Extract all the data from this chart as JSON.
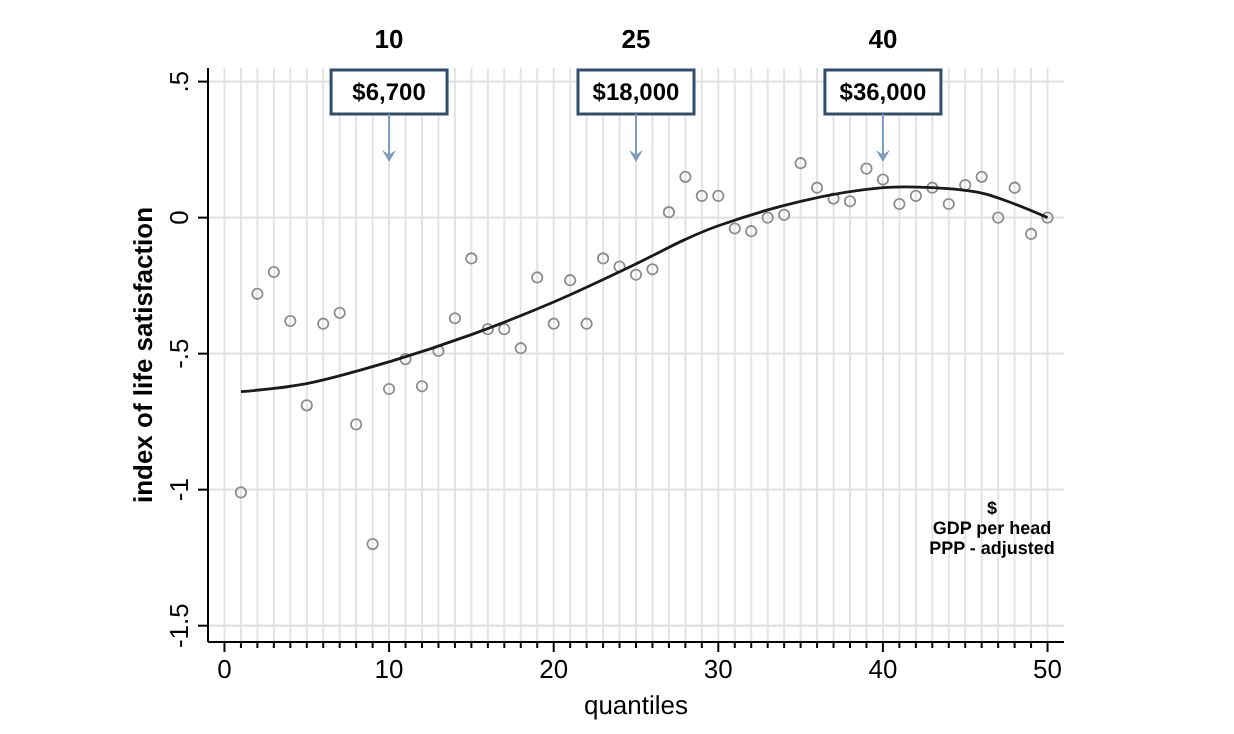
{
  "chart_data": {
    "type": "scatter",
    "xlabel": "quantiles",
    "ylabel": "index of life satisfaction",
    "xlim": [
      -1,
      51
    ],
    "ylim": [
      -1.56,
      0.55
    ],
    "xticks": [
      0,
      {
        "value": 1,
        "label": null
      },
      {
        "value": 2,
        "label": null
      },
      {
        "value": 3,
        "label": null
      },
      {
        "value": 4,
        "label": null
      },
      {
        "value": 5,
        "label": null
      },
      {
        "value": 6,
        "label": null
      },
      {
        "value": 7,
        "label": null
      },
      {
        "value": 8,
        "label": null
      },
      {
        "value": 9,
        "label": null
      },
      10,
      {
        "value": 11,
        "label": null
      },
      {
        "value": 12,
        "label": null
      },
      {
        "value": 13,
        "label": null
      },
      {
        "value": 14,
        "label": null
      },
      {
        "value": 15,
        "label": null
      },
      {
        "value": 16,
        "label": null
      },
      {
        "value": 17,
        "label": null
      },
      {
        "value": 18,
        "label": null
      },
      {
        "value": 19,
        "label": null
      },
      20,
      {
        "value": 21,
        "label": null
      },
      {
        "value": 22,
        "label": null
      },
      {
        "value": 23,
        "label": null
      },
      {
        "value": 24,
        "label": null
      },
      {
        "value": 25,
        "label": null
      },
      {
        "value": 26,
        "label": null
      },
      {
        "value": 27,
        "label": null
      },
      {
        "value": 28,
        "label": null
      },
      {
        "value": 29,
        "label": null
      },
      30,
      {
        "value": 31,
        "label": null
      },
      {
        "value": 32,
        "label": null
      },
      {
        "value": 33,
        "label": null
      },
      {
        "value": 34,
        "label": null
      },
      {
        "value": 35,
        "label": null
      },
      {
        "value": 36,
        "label": null
      },
      {
        "value": 37,
        "label": null
      },
      {
        "value": 38,
        "label": null
      },
      {
        "value": 39,
        "label": null
      },
      40,
      {
        "value": 41,
        "label": null
      },
      {
        "value": 42,
        "label": null
      },
      {
        "value": 43,
        "label": null
      },
      {
        "value": 44,
        "label": null
      },
      {
        "value": 45,
        "label": null
      },
      {
        "value": 46,
        "label": null
      },
      {
        "value": 47,
        "label": null
      },
      {
        "value": 48,
        "label": null
      },
      {
        "value": 49,
        "label": null
      },
      50
    ],
    "yticks": [
      {
        "value": 0.5,
        "label": ".5"
      },
      0,
      {
        "value": -0.5,
        "label": "-.5"
      },
      -1,
      {
        "value": -1.5,
        "label": "-1.5"
      }
    ],
    "x2lim": [
      -1,
      51
    ],
    "x2ticks": [
      10,
      25,
      40
    ],
    "grid": true,
    "marker": "circle",
    "series": [
      {
        "color": "#8c8c8c",
        "x": [
          1,
          2,
          3,
          4,
          5,
          6,
          7,
          8,
          9,
          10,
          11,
          12,
          13,
          14,
          15,
          16,
          17,
          18,
          19,
          20,
          21,
          22,
          23,
          24,
          25,
          26,
          27,
          28,
          29,
          30,
          31,
          32,
          33,
          34,
          35,
          36,
          37,
          38,
          39,
          40,
          41,
          42,
          43,
          44,
          45,
          46,
          47,
          48,
          49,
          50
        ],
        "values": [
          -1.01,
          -0.28,
          -0.2,
          -0.38,
          -0.69,
          -0.39,
          -0.35,
          -0.76,
          -1.2,
          -0.63,
          -0.52,
          -0.62,
          -0.49,
          -0.37,
          -0.15,
          -0.41,
          -0.41,
          -0.48,
          -0.22,
          -0.39,
          -0.23,
          -0.39,
          -0.15,
          -0.18,
          -0.21,
          -0.19,
          0.02,
          0.15,
          0.08,
          0.08,
          -0.04,
          -0.05,
          0,
          0.01,
          0.2,
          0.11,
          0.07,
          0.06,
          0.18,
          0.14,
          0.05,
          0.08,
          0.11,
          0.05,
          0.12,
          0.15,
          0,
          0.11,
          -0.06,
          0
        ]
      },
      {
        "type": "line",
        "color": "#1a1a1a",
        "line_style": "solid",
        "marker": "none",
        "x": [
          1,
          5,
          10,
          15,
          20,
          25,
          28,
          30,
          35,
          40,
          43,
          46,
          48,
          50
        ],
        "values": [
          -0.64,
          -0.61,
          -0.53,
          -0.43,
          -0.31,
          -0.17,
          -0.08,
          -0.03,
          0.06,
          0.11,
          0.11,
          0.09,
          0.05,
          0
        ]
      }
    ],
    "annotations": [
      "$6,700",
      "$18,000",
      "$36,000",
      "$\nGDP per head\nPPP - adjusted"
    ]
  }
}
